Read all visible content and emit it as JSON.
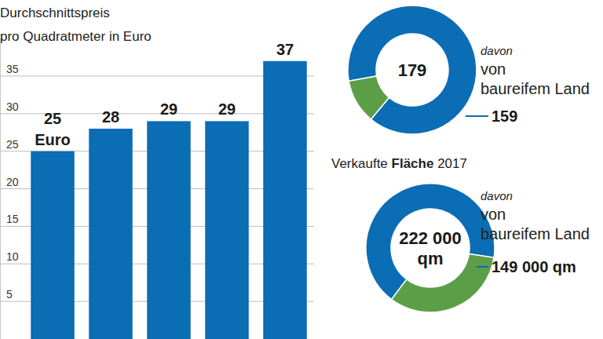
{
  "chart_data": [
    {
      "type": "bar",
      "title": "Durchschnittspreis",
      "subtitle": "pro Quadratmeter in Euro",
      "categories": [
        null,
        null,
        null,
        null,
        null
      ],
      "values": [
        25,
        28,
        29,
        29,
        37
      ],
      "value_labels": [
        "25 Euro",
        "28",
        "29",
        "29",
        "37"
      ],
      "data_labels": true,
      "color": "#0b6db3",
      "ylim": [
        0,
        40
      ],
      "yticks": [
        5,
        10,
        15,
        20,
        25,
        30,
        35
      ],
      "grid": true
    },
    {
      "type": "pie",
      "total": 179,
      "categories": [
        "davon von baureifem Land",
        null
      ],
      "values": [
        159,
        20
      ],
      "value_labels": [
        "159",
        null
      ],
      "data_labels": true,
      "colors": [
        "#0b6db3",
        "#5b9e47"
      ]
    },
    {
      "type": "pie",
      "title": "Verkaufte Fläche 2017",
      "total": 222000,
      "total_label": "222 000 qm",
      "categories": [
        "davon von baureifem Land",
        null
      ],
      "values": [
        149000,
        73000
      ],
      "value_labels": [
        "149 000 qm",
        null
      ],
      "data_labels": true,
      "colors": [
        "#0b6db3",
        "#5b9e47"
      ]
    }
  ]
}
